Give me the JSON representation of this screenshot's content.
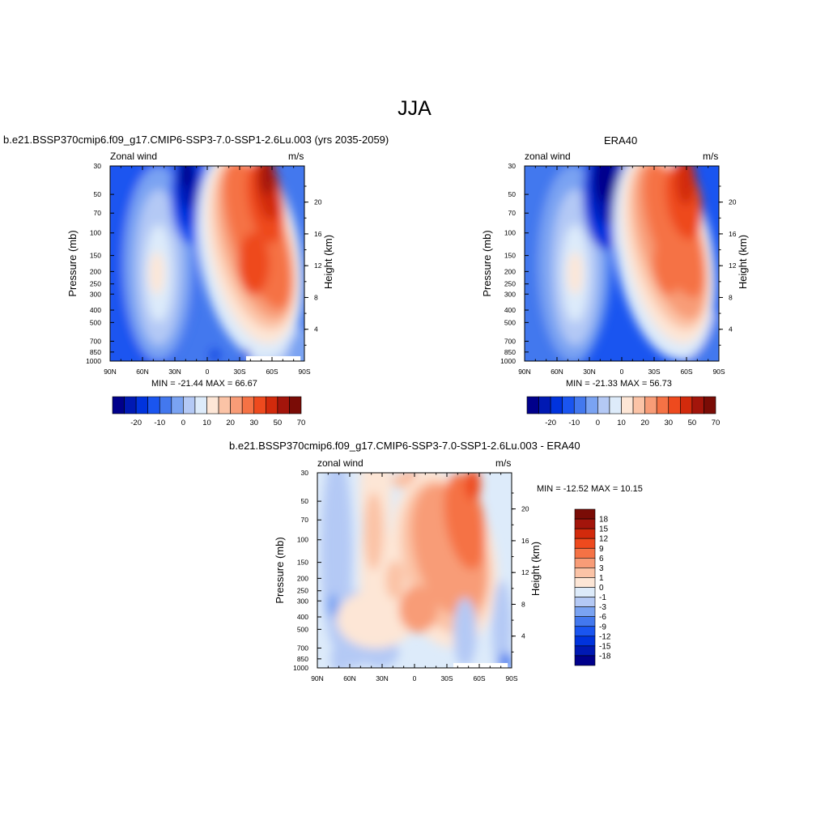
{
  "main_title": "JJA",
  "colors": {
    "palette": [
      "#00008b",
      "#0019b3",
      "#0033dd",
      "#1a55f0",
      "#4378ee",
      "#7aa3f2",
      "#b4c9f5",
      "#ddebfa",
      "#fde6d6",
      "#fbc3a6",
      "#f89c77",
      "#f57245",
      "#ee4a1e",
      "#d22a0c",
      "#a3150b",
      "#7a0c06"
    ]
  },
  "chart_data": [
    {
      "type": "heatmap",
      "title": "b.e21.BSSP370cmip6.f09_g17.CMIP6-SSP3-7.0-SSP1-2.6Lu.003 (yrs 2035-2059)",
      "left_label": "Zonal wind",
      "right_label": "m/s",
      "ylabel": "Pressure (mb)",
      "y2label": "Height (km)",
      "x_ticks": [
        "90N",
        "60N",
        "30N",
        "0",
        "30S",
        "60S",
        "90S"
      ],
      "y_ticks": [
        "30",
        "50",
        "70",
        "100",
        "150",
        "200",
        "250",
        "300",
        "400",
        "500",
        "700",
        "850",
        "1000"
      ],
      "y2_ticks": [
        "20",
        "16",
        "12",
        "8",
        "4"
      ],
      "min_max_text": "MIN = -21.44  MAX =  66.67",
      "colorbar_labels": [
        "-20",
        "-10",
        "0",
        "10",
        "20",
        "30",
        "50",
        "70"
      ],
      "min": -21.44,
      "max": 66.67
    },
    {
      "type": "heatmap",
      "title": "ERA40",
      "left_label": "zonal wind",
      "right_label": "m/s",
      "ylabel": "Pressure (mb)",
      "y2label": "Height (km)",
      "x_ticks": [
        "90N",
        "60N",
        "30N",
        "0",
        "30S",
        "60S",
        "90S"
      ],
      "y_ticks": [
        "30",
        "50",
        "70",
        "100",
        "150",
        "200",
        "250",
        "300",
        "400",
        "500",
        "700",
        "850",
        "1000"
      ],
      "y2_ticks": [
        "20",
        "16",
        "12",
        "8",
        "4"
      ],
      "min_max_text": "MIN = -21.33  MAX =  56.73",
      "colorbar_labels": [
        "-20",
        "-10",
        "0",
        "10",
        "20",
        "30",
        "50",
        "70"
      ],
      "min": -21.33,
      "max": 56.73
    },
    {
      "type": "heatmap",
      "title": "b.e21.BSSP370cmip6.f09_g17.CMIP6-SSP3-7.0-SSP1-2.6Lu.003 - ERA40",
      "left_label": "zonal wind",
      "right_label": "m/s",
      "ylabel": "Pressure (mb)",
      "y2label": "Height (km)",
      "x_ticks": [
        "90N",
        "60N",
        "30N",
        "0",
        "30S",
        "60S",
        "90S"
      ],
      "y_ticks": [
        "30",
        "50",
        "70",
        "100",
        "150",
        "200",
        "250",
        "300",
        "400",
        "500",
        "700",
        "850",
        "1000"
      ],
      "y2_ticks": [
        "20",
        "16",
        "12",
        "8",
        "4"
      ],
      "min_max_text": "MIN = -12.52  MAX =  10.15",
      "colorbar_labels": [
        "18",
        "15",
        "12",
        "9",
        "6",
        "3",
        "1",
        "0",
        "-1",
        "-3",
        "-6",
        "-9",
        "-12",
        "-15",
        "-18"
      ],
      "min": -12.52,
      "max": 10.15
    }
  ]
}
